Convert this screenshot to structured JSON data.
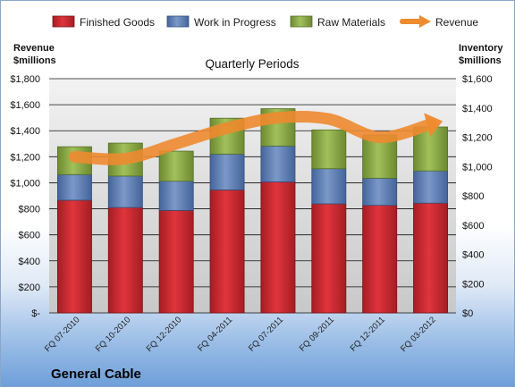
{
  "company": "General Cable",
  "chart_data": {
    "type": "bar",
    "stacked": true,
    "subtitle": "Quarterly Periods",
    "ylabel_left": [
      "Revenue",
      "$millions"
    ],
    "ylabel_right": [
      "Inventory",
      "$millions"
    ],
    "categories": [
      "FQ 07-2010",
      "FQ 10-2010",
      "FQ 12-2010",
      "FQ 04-2011",
      "FQ 07-2011",
      "FQ 09-2011",
      "FQ 12-2011",
      "FQ 03-2012"
    ],
    "series": [
      {
        "name": "Finished Goods",
        "axis": "right",
        "color": "#c0262d",
        "values": [
          770,
          720,
          700,
          840,
          895,
          745,
          735,
          750
        ]
      },
      {
        "name": "Work in Progress",
        "axis": "right",
        "color": "#5577b0",
        "values": [
          175,
          215,
          200,
          245,
          245,
          240,
          185,
          220
        ]
      },
      {
        "name": "Raw Materials",
        "axis": "right",
        "color": "#86a640",
        "values": [
          190,
          225,
          205,
          245,
          255,
          265,
          295,
          300
        ]
      }
    ],
    "line": {
      "name": "Revenue",
      "axis": "left",
      "color": "#ee8a2f",
      "values": [
        1200,
        1185,
        1300,
        1420,
        1500,
        1490,
        1350,
        1450
      ]
    },
    "ylim_left": [
      0,
      1800
    ],
    "yticks_left": [
      "$-",
      "$200",
      "$400",
      "$600",
      "$800",
      "$1,000",
      "$1,200",
      "$1,400",
      "$1,600",
      "$1,800"
    ],
    "ylim_right": [
      0,
      1600
    ],
    "yticks_right": [
      "$0",
      "$200",
      "$400",
      "$600",
      "$800",
      "$1,000",
      "$1,200",
      "$1,400",
      "$1,600"
    ],
    "grid": true,
    "legend_position": "top"
  }
}
